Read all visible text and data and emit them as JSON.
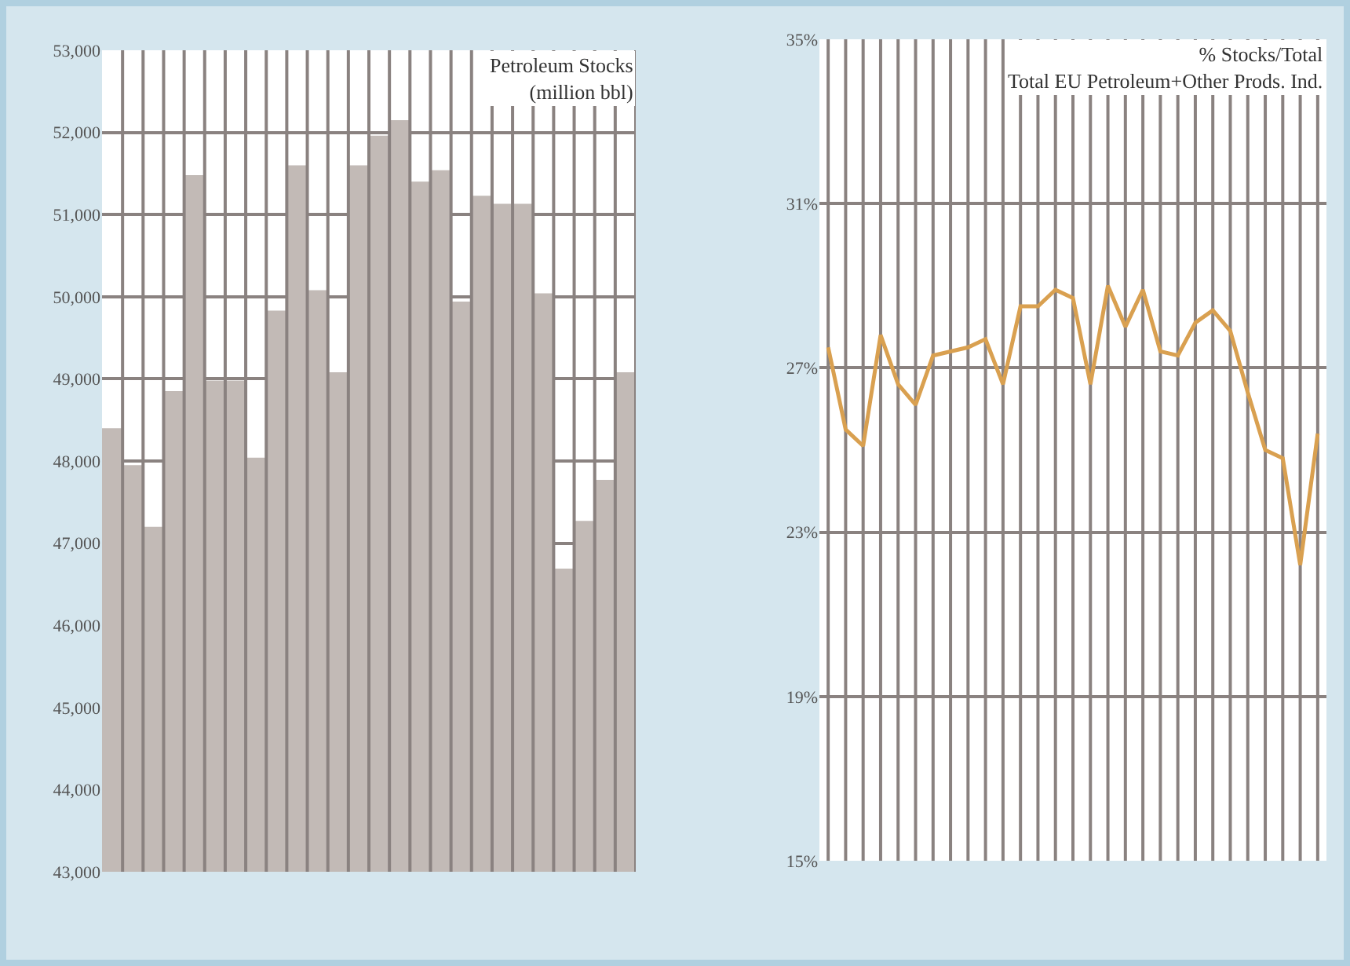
{
  "chart_data": [
    {
      "type": "bar",
      "title": "Petroleum Stocks",
      "subtitle": "(million bbl)",
      "color": "#c2bab6",
      "categories": [
        null,
        null,
        null,
        null,
        null,
        null,
        null,
        null,
        null,
        null,
        null,
        null,
        null,
        null,
        null,
        null,
        null,
        null,
        null,
        null,
        null,
        null,
        null,
        null,
        null,
        null
      ],
      "values": [
        48400,
        47950,
        47200,
        48850,
        51480,
        48980,
        48980,
        48040,
        49830,
        51600,
        50080,
        49080,
        51600,
        51960,
        52150,
        51400,
        51540,
        49940,
        51230,
        51130,
        51130,
        50040,
        46690,
        47270,
        47770,
        49080
      ],
      "ylim": [
        43000,
        53000
      ],
      "yticks": [
        {
          "value": 43000,
          "label": "43,000"
        },
        {
          "value": 44000,
          "label": "44,000"
        },
        {
          "value": 45000,
          "label": "45,000"
        },
        {
          "value": 46000,
          "label": "46,000"
        },
        {
          "value": 47000,
          "label": "47,000"
        },
        {
          "value": 48000,
          "label": "48,000"
        },
        {
          "value": 49000,
          "label": "49,000"
        },
        {
          "value": 50000,
          "label": "50,000"
        },
        {
          "value": 51000,
          "label": "51,000"
        },
        {
          "value": 52000,
          "label": "52,000"
        },
        {
          "value": 53000,
          "label": "53,000"
        }
      ],
      "grid": true
    },
    {
      "type": "line",
      "title": "% Stocks/Total",
      "subtitle": "Total EU Petroleum+Other Prods. Ind.",
      "color": "#d9a050",
      "categories": [
        null,
        null,
        null,
        null,
        null,
        null,
        null,
        null,
        null,
        null,
        null,
        null,
        null,
        null,
        null,
        null,
        null,
        null,
        null,
        null,
        null,
        null,
        null,
        null,
        null,
        null,
        null,
        null,
        null
      ],
      "values": [
        27.5,
        25.5,
        25.1,
        27.8,
        26.6,
        26.1,
        27.3,
        27.4,
        27.5,
        27.7,
        26.6,
        28.5,
        28.5,
        28.9,
        28.7,
        26.6,
        29.0,
        28.0,
        28.9,
        27.4,
        27.3,
        28.1,
        28.4,
        27.9,
        26.4,
        25.0,
        24.8,
        22.2,
        25.4
      ],
      "ylim": [
        15,
        35
      ],
      "yticks": [
        {
          "value": 15,
          "label": "15%"
        },
        {
          "value": 19,
          "label": "19%"
        },
        {
          "value": 23,
          "label": "23%"
        },
        {
          "value": 27,
          "label": "27%"
        },
        {
          "value": 31,
          "label": "31%"
        },
        {
          "value": 35,
          "label": "35%"
        }
      ],
      "grid": true,
      "marker": "none",
      "line_style": "solid"
    }
  ]
}
